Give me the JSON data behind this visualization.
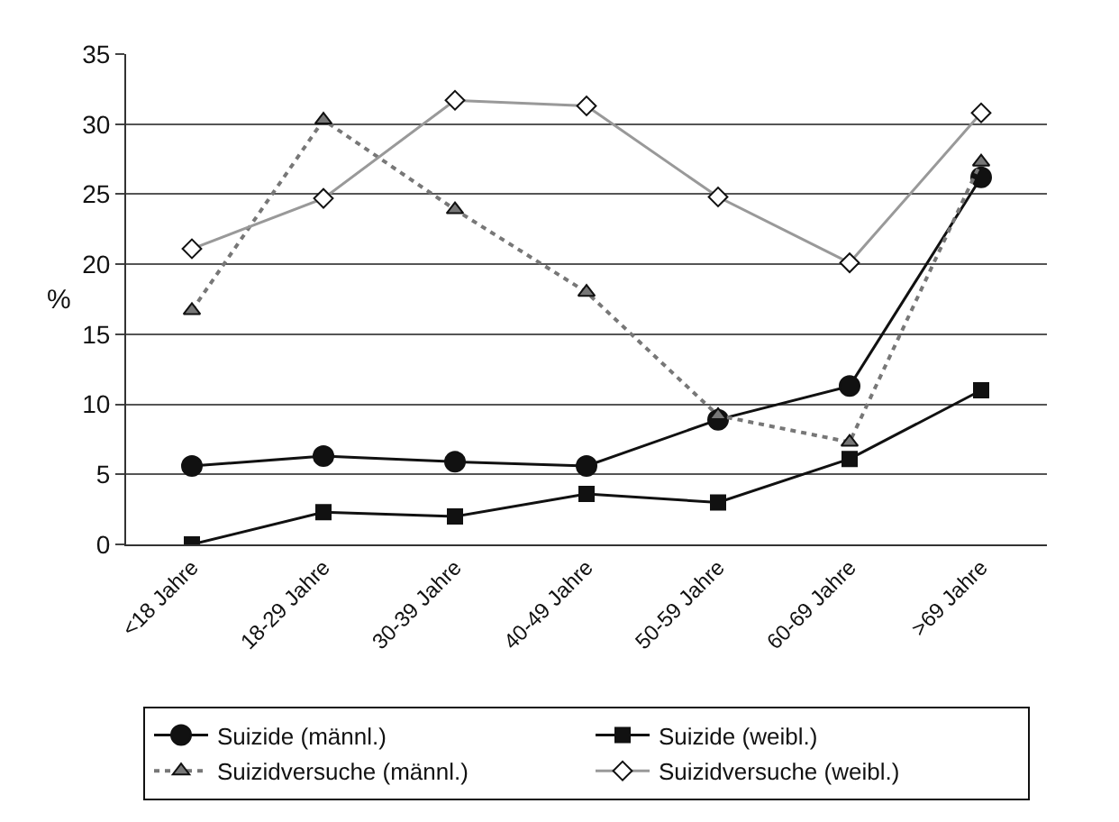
{
  "chart_data": {
    "type": "line",
    "ylabel": "%",
    "categories": [
      "<18 Jahre",
      "18-29 Jahre",
      "30-39 Jahre",
      "40-49 Jahre",
      "50-59 Jahre",
      "60-69 Jahre",
      ">69 Jahre"
    ],
    "series": [
      {
        "name": "Suizide (männl.)",
        "color": "#111111",
        "marker": "circle",
        "line_style": "solid",
        "values": [
          5.6,
          6.3,
          5.9,
          5.6,
          8.9,
          11.3,
          26.2
        ]
      },
      {
        "name": "Suizide (weibl.)",
        "color": "#111111",
        "marker": "square",
        "line_style": "solid",
        "values": [
          0.0,
          2.3,
          2.0,
          3.6,
          3.0,
          6.1,
          11.0
        ]
      },
      {
        "name": "Suizidversuche (männl.)",
        "color": "#777777",
        "marker": "triangle",
        "line_style": "dotted",
        "values": [
          16.7,
          30.3,
          23.9,
          18.0,
          9.2,
          7.3,
          27.3
        ]
      },
      {
        "name": "Suizidversuche (weibl.)",
        "color": "#999999",
        "marker": "diamond",
        "line_style": "solid",
        "values": [
          21.1,
          24.7,
          31.7,
          31.3,
          24.8,
          20.1,
          30.8
        ]
      }
    ],
    "ylim": [
      0,
      35
    ],
    "yticks": [
      0,
      5,
      10,
      15,
      20,
      25,
      30,
      35
    ],
    "grid": "y",
    "legend": "bottom"
  }
}
